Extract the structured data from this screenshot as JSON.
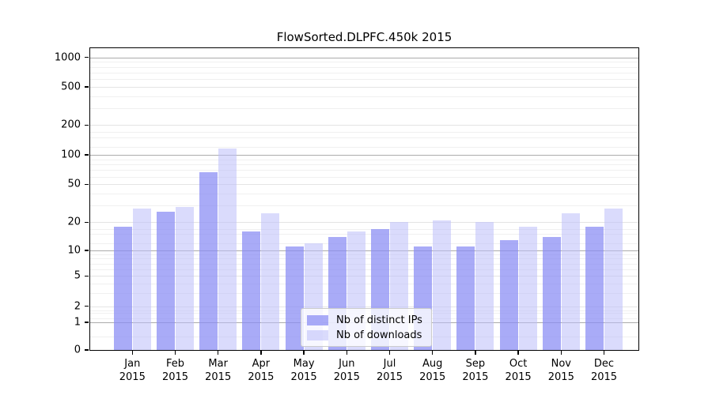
{
  "title": "FlowSorted.DLPFC.450k 2015",
  "chart_data": {
    "type": "bar",
    "title": "FlowSorted.DLPFC.450k 2015",
    "categories": [
      "Jan",
      "Feb",
      "Mar",
      "Apr",
      "May",
      "Jun",
      "Jul",
      "Aug",
      "Sep",
      "Oct",
      "Nov",
      "Dec"
    ],
    "year_label": "2015",
    "series": [
      {
        "name": "Nb of distinct IPs",
        "color": "rgba(136,138,244,0.72)",
        "color_hex": "#a9aaf3",
        "values": [
          18,
          26,
          66,
          16,
          11,
          14,
          17,
          11,
          11,
          13,
          14,
          18
        ]
      },
      {
        "name": "Nb of downloads",
        "color": "rgba(188,190,250,0.55)",
        "color_hex": "#dadbfa",
        "values": [
          28,
          29,
          117,
          25,
          12,
          16,
          20,
          21,
          20,
          18,
          25,
          28
        ]
      }
    ],
    "y_ticks": {
      "values": [
        0,
        1,
        2,
        5,
        10,
        20,
        50,
        100,
        200,
        500,
        1000
      ],
      "labels": [
        "0",
        "1",
        "2",
        "5",
        "10",
        "20",
        "50",
        "100",
        "200",
        "500",
        "1000"
      ]
    },
    "y_scale": "log-like (compressed below 10, zero shown at baseline)",
    "ylim": [
      0,
      1300
    ],
    "grid": true,
    "legend_position": "inside plot, lower center"
  },
  "legend": {
    "items": [
      {
        "label": "Nb of distinct IPs"
      },
      {
        "label": "Nb of downloads"
      }
    ]
  }
}
